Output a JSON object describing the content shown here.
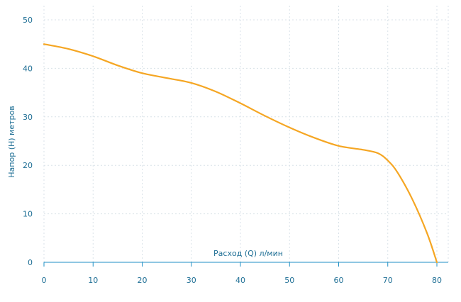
{
  "chart_data": {
    "type": "line",
    "title": "",
    "xlabel": "Расход (Q) л/мин",
    "ylabel": "Напор (H) метров",
    "xlim": [
      0,
      80
    ],
    "ylim": [
      0,
      50
    ],
    "x_ticks": [
      0,
      10,
      20,
      30,
      40,
      50,
      60,
      70,
      80
    ],
    "y_ticks": [
      0,
      10,
      20,
      30,
      40,
      50
    ],
    "grid": true,
    "legend": "none",
    "series": [
      {
        "color": "#f5a623",
        "x": [
          0,
          5,
          10,
          15,
          20,
          25,
          30,
          35,
          40,
          45,
          50,
          55,
          60,
          65,
          68,
          70,
          72,
          75,
          78,
          80
        ],
        "y": [
          45,
          44,
          42.5,
          40.6,
          39,
          38,
          37,
          35.2,
          32.8,
          30.2,
          27.8,
          25.7,
          24,
          23.2,
          22.5,
          21,
          18.5,
          13,
          6,
          0
        ]
      }
    ]
  }
}
